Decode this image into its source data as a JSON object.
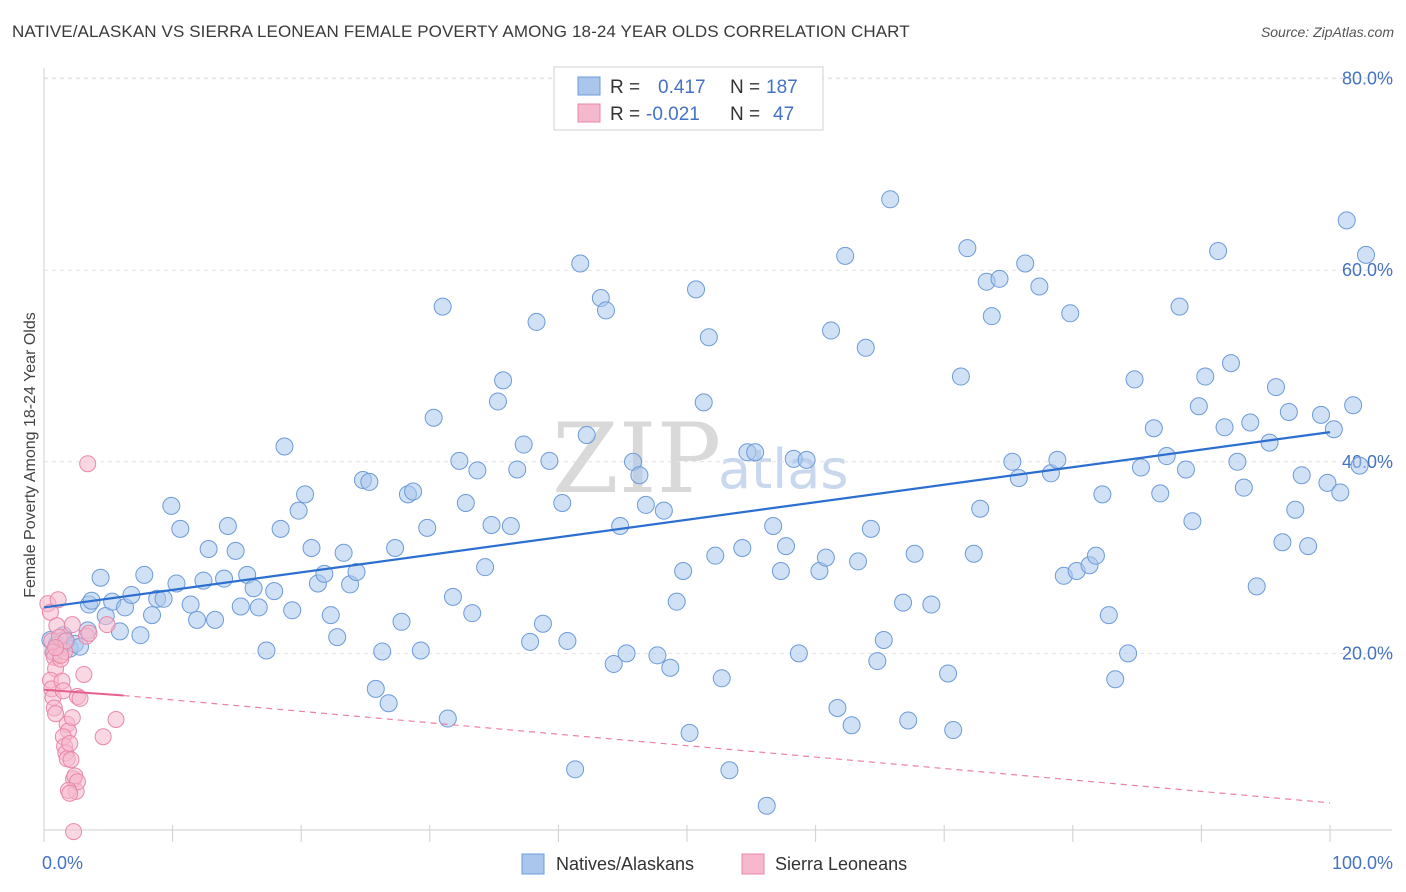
{
  "header": {
    "title": "NATIVE/ALASKAN VS SIERRA LEONEAN FEMALE POVERTY AMONG 18-24 YEAR OLDS CORRELATION CHART",
    "source": "Source: ZipAtlas.com"
  },
  "legend": {
    "rows": [
      {
        "r_label": "R =",
        "r_value": "0.417",
        "n_label": "N =",
        "n_value": "187"
      },
      {
        "r_label": "R =",
        "r_value": "-0.021",
        "n_label": "N =",
        "n_value": "47"
      }
    ]
  },
  "bottom_legend": [
    "Natives/Alaskans",
    "Sierra Leoneans"
  ],
  "watermark": {
    "zip": "ZIP",
    "atlas": "atlas"
  },
  "colors": {
    "blue_fill": "#aac6ec",
    "blue_stroke": "#6d9bd8",
    "blue_line": "#2d6fd0",
    "pink_fill": "#f5b8cc",
    "pink_stroke": "#e888a8",
    "pink_line": "#e8608e",
    "axis_text": "#4472c4",
    "grid": "#e3e3e3"
  },
  "chart_data": {
    "type": "scatter",
    "title": "NATIVE/ALASKAN VS SIERRA LEONEAN FEMALE POVERTY AMONG 18-24 YEAR OLDS CORRELATION CHART",
    "xlabel": "",
    "ylabel": "Female Poverty Among 18-24 Year Olds",
    "xlim": [
      0,
      100
    ],
    "ylim": [
      0,
      82
    ],
    "x_tick_labels": [
      {
        "value": 0,
        "label": "0.0%"
      },
      {
        "value": 100,
        "label": "100.0%"
      }
    ],
    "y_tick_labels": [
      {
        "value": 20,
        "label": "20.0%"
      },
      {
        "value": 40,
        "label": "40.0%"
      },
      {
        "value": 60,
        "label": "60.0%"
      },
      {
        "value": 80,
        "label": "80.0%"
      }
    ],
    "grid": true,
    "legend_position": "top-center",
    "series": [
      {
        "name": "Natives/Alaskans",
        "R": 0.417,
        "N": 187,
        "trend": {
          "x": [
            0,
            100
          ],
          "y": [
            24.8,
            43.1
          ],
          "style": "solid"
        },
        "points": [
          [
            0.5,
            21.4
          ],
          [
            1.0,
            20.9
          ],
          [
            1.3,
            20.6
          ],
          [
            1.7,
            21.3
          ],
          [
            2.0,
            20.5
          ],
          [
            0.8,
            20.2
          ],
          [
            1.5,
            21.9
          ],
          [
            2.4,
            21.0
          ],
          [
            2.8,
            20.7
          ],
          [
            3.4,
            22.4
          ],
          [
            3.5,
            25.1
          ],
          [
            3.7,
            25.5
          ],
          [
            4.4,
            27.9
          ],
          [
            4.8,
            23.9
          ],
          [
            5.3,
            25.4
          ],
          [
            5.9,
            22.3
          ],
          [
            6.3,
            24.8
          ],
          [
            6.8,
            26.1
          ],
          [
            7.5,
            21.9
          ],
          [
            7.8,
            28.2
          ],
          [
            8.4,
            24.0
          ],
          [
            8.8,
            25.7
          ],
          [
            9.3,
            25.7
          ],
          [
            9.9,
            35.4
          ],
          [
            10.3,
            27.3
          ],
          [
            10.6,
            33.0
          ],
          [
            11.4,
            25.1
          ],
          [
            11.9,
            23.5
          ],
          [
            12.4,
            27.6
          ],
          [
            12.8,
            30.9
          ],
          [
            13.3,
            23.5
          ],
          [
            14.0,
            27.8
          ],
          [
            14.3,
            33.3
          ],
          [
            14.9,
            30.7
          ],
          [
            15.3,
            24.9
          ],
          [
            15.8,
            28.2
          ],
          [
            16.3,
            26.8
          ],
          [
            16.7,
            24.8
          ],
          [
            17.3,
            20.3
          ],
          [
            17.9,
            26.5
          ],
          [
            18.4,
            33.0
          ],
          [
            18.7,
            41.6
          ],
          [
            19.3,
            24.5
          ],
          [
            19.8,
            34.9
          ],
          [
            20.3,
            36.6
          ],
          [
            20.8,
            31.0
          ],
          [
            21.3,
            27.3
          ],
          [
            21.8,
            28.3
          ],
          [
            22.3,
            24.0
          ],
          [
            22.8,
            21.7
          ],
          [
            23.3,
            30.5
          ],
          [
            23.8,
            27.2
          ],
          [
            24.3,
            28.5
          ],
          [
            24.8,
            38.1
          ],
          [
            25.3,
            37.9
          ],
          [
            25.8,
            16.3
          ],
          [
            26.3,
            20.2
          ],
          [
            26.8,
            14.8
          ],
          [
            27.3,
            31.0
          ],
          [
            27.8,
            23.3
          ],
          [
            28.3,
            36.6
          ],
          [
            28.7,
            36.9
          ],
          [
            29.3,
            20.3
          ],
          [
            29.8,
            33.1
          ],
          [
            30.3,
            44.6
          ],
          [
            31.0,
            56.2
          ],
          [
            31.4,
            13.2
          ],
          [
            31.8,
            25.9
          ],
          [
            32.3,
            40.1
          ],
          [
            32.8,
            35.7
          ],
          [
            33.3,
            24.2
          ],
          [
            33.7,
            39.1
          ],
          [
            34.3,
            29.0
          ],
          [
            34.8,
            33.4
          ],
          [
            35.3,
            46.3
          ],
          [
            35.7,
            48.5
          ],
          [
            36.3,
            33.3
          ],
          [
            36.8,
            39.2
          ],
          [
            37.3,
            41.8
          ],
          [
            37.8,
            21.2
          ],
          [
            38.3,
            54.6
          ],
          [
            38.8,
            23.1
          ],
          [
            39.3,
            40.1
          ],
          [
            40.3,
            35.7
          ],
          [
            40.7,
            21.3
          ],
          [
            41.3,
            7.9
          ],
          [
            41.7,
            60.7
          ],
          [
            42.2,
            42.8
          ],
          [
            43.3,
            57.1
          ],
          [
            43.7,
            55.8
          ],
          [
            44.3,
            18.9
          ],
          [
            44.8,
            33.3
          ],
          [
            45.3,
            20.0
          ],
          [
            45.8,
            40.0
          ],
          [
            46.3,
            38.6
          ],
          [
            46.8,
            35.5
          ],
          [
            47.7,
            19.8
          ],
          [
            48.2,
            34.9
          ],
          [
            48.7,
            18.5
          ],
          [
            49.2,
            25.4
          ],
          [
            49.7,
            28.6
          ],
          [
            50.2,
            11.7
          ],
          [
            50.7,
            58.0
          ],
          [
            51.3,
            46.2
          ],
          [
            51.7,
            53.0
          ],
          [
            52.2,
            30.2
          ],
          [
            52.7,
            17.4
          ],
          [
            53.3,
            7.8
          ],
          [
            54.3,
            31.0
          ],
          [
            54.7,
            41.0
          ],
          [
            55.3,
            41.0
          ],
          [
            56.2,
            4.1
          ],
          [
            56.7,
            33.3
          ],
          [
            57.3,
            28.6
          ],
          [
            57.7,
            31.2
          ],
          [
            58.3,
            40.3
          ],
          [
            58.7,
            20.0
          ],
          [
            59.3,
            40.2
          ],
          [
            60.3,
            28.6
          ],
          [
            60.8,
            30.0
          ],
          [
            61.2,
            53.7
          ],
          [
            61.7,
            14.3
          ],
          [
            62.3,
            61.5
          ],
          [
            62.8,
            12.5
          ],
          [
            63.3,
            29.6
          ],
          [
            63.9,
            51.9
          ],
          [
            64.3,
            33.0
          ],
          [
            64.8,
            19.2
          ],
          [
            65.3,
            21.4
          ],
          [
            65.8,
            67.4
          ],
          [
            66.8,
            25.3
          ],
          [
            67.2,
            13.0
          ],
          [
            67.7,
            30.4
          ],
          [
            69.0,
            25.1
          ],
          [
            70.3,
            17.9
          ],
          [
            70.7,
            12.0
          ],
          [
            71.3,
            48.9
          ],
          [
            71.8,
            62.3
          ],
          [
            72.3,
            30.4
          ],
          [
            72.8,
            35.1
          ],
          [
            73.3,
            58.8
          ],
          [
            73.7,
            55.2
          ],
          [
            74.3,
            59.1
          ],
          [
            75.3,
            40.0
          ],
          [
            75.8,
            38.3
          ],
          [
            76.3,
            60.7
          ],
          [
            77.4,
            58.3
          ],
          [
            78.3,
            38.8
          ],
          [
            78.8,
            40.2
          ],
          [
            79.3,
            28.1
          ],
          [
            79.8,
            55.5
          ],
          [
            80.3,
            28.6
          ],
          [
            81.3,
            29.2
          ],
          [
            81.8,
            30.2
          ],
          [
            82.3,
            36.6
          ],
          [
            82.8,
            24.0
          ],
          [
            83.3,
            17.3
          ],
          [
            84.3,
            20.0
          ],
          [
            84.8,
            48.6
          ],
          [
            85.3,
            39.4
          ],
          [
            86.3,
            43.5
          ],
          [
            86.8,
            36.7
          ],
          [
            87.3,
            40.6
          ],
          [
            88.3,
            56.2
          ],
          [
            88.8,
            39.2
          ],
          [
            89.3,
            33.8
          ],
          [
            89.8,
            45.8
          ],
          [
            90.3,
            48.9
          ],
          [
            91.3,
            62.0
          ],
          [
            91.8,
            43.6
          ],
          [
            92.3,
            50.3
          ],
          [
            92.8,
            40.0
          ],
          [
            93.3,
            37.3
          ],
          [
            93.8,
            44.1
          ],
          [
            94.3,
            27.0
          ],
          [
            95.3,
            42.0
          ],
          [
            95.8,
            47.8
          ],
          [
            96.3,
            31.6
          ],
          [
            96.8,
            45.2
          ],
          [
            97.3,
            35.0
          ],
          [
            97.8,
            38.6
          ],
          [
            98.3,
            31.2
          ],
          [
            99.3,
            44.9
          ],
          [
            99.8,
            37.8
          ],
          [
            100.3,
            43.4
          ],
          [
            100.8,
            36.8
          ],
          [
            101.3,
            65.2
          ],
          [
            101.8,
            45.9
          ],
          [
            102.3,
            39.6
          ],
          [
            102.8,
            61.6
          ]
        ]
      },
      {
        "name": "Sierra Leoneans",
        "R": -0.021,
        "N": 47,
        "trend_solid": {
          "x": [
            0,
            6.2
          ],
          "y": [
            16.2,
            15.6
          ],
          "style": "solid"
        },
        "trend": {
          "x": [
            6.2,
            100
          ],
          "y": [
            15.6,
            4.4
          ],
          "style": "dashed"
        },
        "points": [
          [
            0.3,
            25.2
          ],
          [
            0.5,
            24.3
          ],
          [
            0.6,
            21.3
          ],
          [
            0.7,
            20.1
          ],
          [
            0.8,
            19.6
          ],
          [
            0.9,
            18.4
          ],
          [
            0.5,
            17.2
          ],
          [
            0.6,
            16.3
          ],
          [
            0.7,
            15.4
          ],
          [
            0.8,
            14.3
          ],
          [
            0.9,
            13.7
          ],
          [
            1.0,
            22.9
          ],
          [
            1.1,
            25.6
          ],
          [
            1.2,
            21.7
          ],
          [
            1.3,
            19.4
          ],
          [
            1.4,
            17.1
          ],
          [
            1.5,
            16.1
          ],
          [
            1.6,
            20.2
          ],
          [
            1.7,
            21.3
          ],
          [
            1.8,
            12.6
          ],
          [
            1.9,
            11.9
          ],
          [
            1.5,
            11.3
          ],
          [
            1.6,
            10.3
          ],
          [
            1.7,
            9.6
          ],
          [
            1.8,
            9.0
          ],
          [
            2.0,
            10.6
          ],
          [
            2.1,
            8.9
          ],
          [
            2.2,
            23.0
          ],
          [
            2.3,
            6.9
          ],
          [
            2.4,
            7.2
          ],
          [
            2.5,
            5.6
          ],
          [
            2.6,
            6.6
          ],
          [
            1.9,
            5.7
          ],
          [
            2.0,
            5.4
          ],
          [
            2.3,
            1.4
          ],
          [
            2.6,
            15.5
          ],
          [
            2.8,
            15.3
          ],
          [
            3.1,
            17.8
          ],
          [
            3.3,
            21.8
          ],
          [
            3.4,
            39.8
          ],
          [
            3.5,
            22.1
          ],
          [
            4.6,
            11.3
          ],
          [
            4.9,
            23.0
          ],
          [
            5.6,
            13.1
          ],
          [
            2.2,
            13.3
          ],
          [
            1.3,
            19.8
          ],
          [
            0.9,
            20.6
          ]
        ]
      }
    ]
  }
}
